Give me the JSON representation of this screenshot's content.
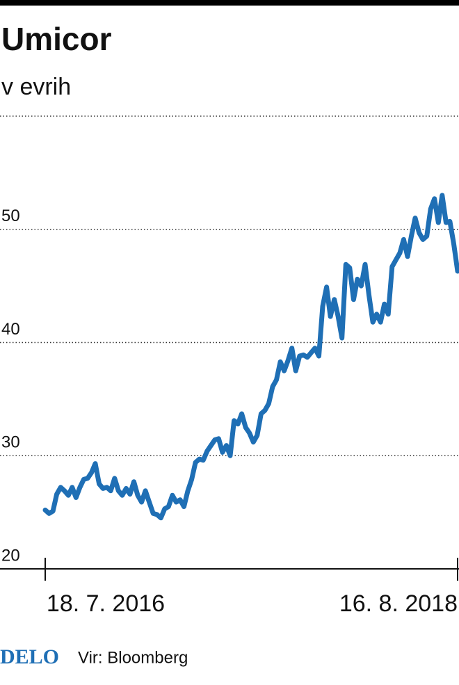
{
  "chart_data": {
    "type": "line",
    "title": "Umicor",
    "subtitle": "v evrih",
    "categories": [
      "18. 7. 2016",
      null,
      null,
      null,
      null,
      null,
      null,
      null,
      null,
      null,
      null,
      null,
      null,
      null,
      null,
      null,
      null,
      null,
      null,
      null,
      null,
      null,
      null,
      null,
      null,
      null,
      null,
      null,
      null,
      null,
      null,
      null,
      null,
      null,
      null,
      null,
      null,
      null,
      null,
      null,
      null,
      null,
      null,
      null,
      null,
      null,
      null,
      null,
      null,
      null,
      null,
      null,
      null,
      null,
      null,
      null,
      null,
      null,
      null,
      null,
      null,
      null,
      null,
      null,
      null,
      null,
      null,
      null,
      null,
      null,
      null,
      null,
      null,
      null,
      null,
      null,
      null,
      null,
      null,
      null,
      null,
      null,
      null,
      null,
      null,
      null,
      null,
      null,
      null,
      null,
      null,
      null,
      null,
      null,
      null,
      null,
      null,
      null,
      null,
      null,
      null,
      null,
      null,
      null,
      null,
      null,
      null,
      "16. 8. 2018"
    ],
    "values": [
      25.2,
      24.9,
      25.1,
      26.6,
      27.2,
      26.9,
      26.5,
      27.2,
      26.3,
      27.2,
      27.9,
      28,
      28.5,
      29.3,
      27.5,
      27.1,
      27.2,
      26.9,
      28,
      26.9,
      26.5,
      27.1,
      26.6,
      27.7,
      26.5,
      25.9,
      26.9,
      25.9,
      24.9,
      24.8,
      24.5,
      25.3,
      25.5,
      26.5,
      25.9,
      26.1,
      25.5,
      26.9,
      27.9,
      29.4,
      29.7,
      29.6,
      30.4,
      30.9,
      31.4,
      31.5,
      30.3,
      30.9,
      30,
      33.1,
      32.8,
      33.7,
      32.5,
      32,
      31.2,
      31.8,
      33.7,
      34,
      34.6,
      36.1,
      36.7,
      38.3,
      37.5,
      38.4,
      39.5,
      37.5,
      38.8,
      38.9,
      38.7,
      39.1,
      39.5,
      38.8,
      43.2,
      44.9,
      42.3,
      43.8,
      42.3,
      40.4,
      46.9,
      46.6,
      43.8,
      45.6,
      45,
      46.9,
      44.2,
      41.8,
      42.5,
      41.8,
      43.4,
      42.5,
      46.7,
      47.3,
      47.9,
      49.1,
      47.6,
      49.4,
      51,
      49.7,
      49.1,
      49.4,
      51.8,
      52.7,
      50.6,
      53,
      50.6,
      50.7,
      48.7,
      46.3
    ],
    "color": "#1f6fb5",
    "ylim": [
      20,
      60
    ],
    "yticks": [
      20,
      30,
      40,
      50
    ],
    "grid": true
  },
  "footer": {
    "logo": "DELO",
    "source": "Vir: Bloomberg"
  }
}
